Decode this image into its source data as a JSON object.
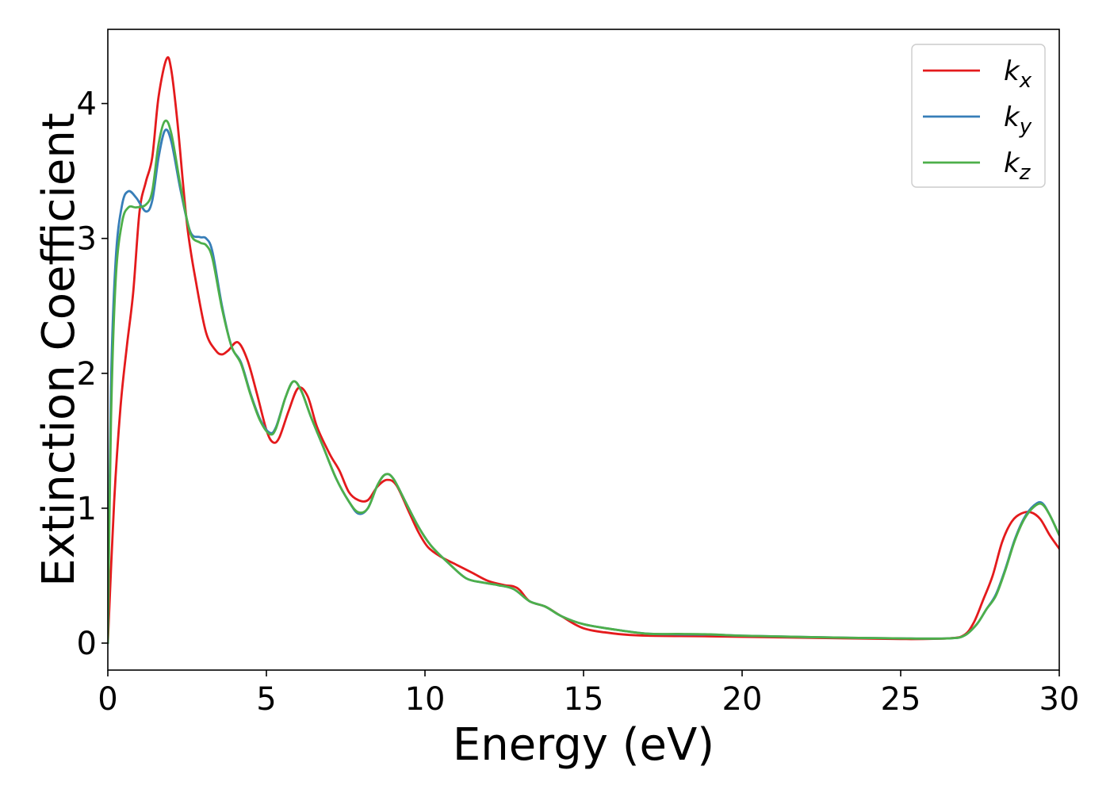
{
  "chart_data": {
    "type": "line",
    "title": "",
    "xlabel": "Energy (eV)",
    "ylabel": "Extinction Coefficient",
    "xlim": [
      0,
      30
    ],
    "ylim": [
      -0.2,
      4.55
    ],
    "xticks": [
      0,
      5,
      10,
      15,
      20,
      25,
      30
    ],
    "yticks": [
      0,
      1,
      2,
      3,
      4
    ],
    "grid": false,
    "legend_position": "top-right",
    "series": [
      {
        "name": "k",
        "subscript": "x",
        "color": "#e41a1c",
        "points": [
          [
            0,
            0
          ],
          [
            0.2,
            1.05
          ],
          [
            0.4,
            1.75
          ],
          [
            0.6,
            2.2
          ],
          [
            0.8,
            2.6
          ],
          [
            1.0,
            3.2
          ],
          [
            1.2,
            3.42
          ],
          [
            1.4,
            3.6
          ],
          [
            1.6,
            4.05
          ],
          [
            1.85,
            4.33
          ],
          [
            2.0,
            4.25
          ],
          [
            2.2,
            3.85
          ],
          [
            2.5,
            3.1
          ],
          [
            2.8,
            2.65
          ],
          [
            3.1,
            2.3
          ],
          [
            3.4,
            2.17
          ],
          [
            3.6,
            2.14
          ],
          [
            3.8,
            2.17
          ],
          [
            4.1,
            2.23
          ],
          [
            4.4,
            2.1
          ],
          [
            4.7,
            1.85
          ],
          [
            5.0,
            1.58
          ],
          [
            5.2,
            1.49
          ],
          [
            5.4,
            1.52
          ],
          [
            5.7,
            1.72
          ],
          [
            6.0,
            1.89
          ],
          [
            6.3,
            1.83
          ],
          [
            6.6,
            1.6
          ],
          [
            7.0,
            1.4
          ],
          [
            7.3,
            1.28
          ],
          [
            7.6,
            1.12
          ],
          [
            7.9,
            1.06
          ],
          [
            8.2,
            1.06
          ],
          [
            8.5,
            1.16
          ],
          [
            8.8,
            1.21
          ],
          [
            9.1,
            1.17
          ],
          [
            9.5,
            0.97
          ],
          [
            9.8,
            0.82
          ],
          [
            10.1,
            0.71
          ],
          [
            10.5,
            0.64
          ],
          [
            11.0,
            0.58
          ],
          [
            11.5,
            0.52
          ],
          [
            12.0,
            0.46
          ],
          [
            12.5,
            0.43
          ],
          [
            12.8,
            0.42
          ],
          [
            13.0,
            0.39
          ],
          [
            13.3,
            0.31
          ],
          [
            13.8,
            0.27
          ],
          [
            14.3,
            0.2
          ],
          [
            15.0,
            0.11
          ],
          [
            16.0,
            0.07
          ],
          [
            17.0,
            0.055
          ],
          [
            19.0,
            0.05
          ],
          [
            22.0,
            0.04
          ],
          [
            25.0,
            0.03
          ],
          [
            26.5,
            0.035
          ],
          [
            27.0,
            0.06
          ],
          [
            27.3,
            0.15
          ],
          [
            27.6,
            0.32
          ],
          [
            27.9,
            0.5
          ],
          [
            28.2,
            0.75
          ],
          [
            28.5,
            0.9
          ],
          [
            28.8,
            0.96
          ],
          [
            29.1,
            0.97
          ],
          [
            29.4,
            0.92
          ],
          [
            29.7,
            0.8
          ],
          [
            30.0,
            0.7
          ]
        ]
      },
      {
        "name": "k",
        "subscript": "y",
        "color": "#377eb8",
        "points": [
          [
            0,
            0
          ],
          [
            0.1,
            1.9
          ],
          [
            0.25,
            2.85
          ],
          [
            0.45,
            3.25
          ],
          [
            0.65,
            3.35
          ],
          [
            0.9,
            3.3
          ],
          [
            1.2,
            3.2
          ],
          [
            1.4,
            3.28
          ],
          [
            1.6,
            3.6
          ],
          [
            1.8,
            3.8
          ],
          [
            2.0,
            3.72
          ],
          [
            2.3,
            3.35
          ],
          [
            2.6,
            3.05
          ],
          [
            2.9,
            3.01
          ],
          [
            3.1,
            3.0
          ],
          [
            3.3,
            2.9
          ],
          [
            3.6,
            2.5
          ],
          [
            3.9,
            2.2
          ],
          [
            4.2,
            2.08
          ],
          [
            4.5,
            1.85
          ],
          [
            4.8,
            1.66
          ],
          [
            5.1,
            1.56
          ],
          [
            5.3,
            1.6
          ],
          [
            5.6,
            1.82
          ],
          [
            5.85,
            1.94
          ],
          [
            6.1,
            1.87
          ],
          [
            6.4,
            1.68
          ],
          [
            6.8,
            1.45
          ],
          [
            7.2,
            1.22
          ],
          [
            7.6,
            1.05
          ],
          [
            7.9,
            0.96
          ],
          [
            8.2,
            1.0
          ],
          [
            8.5,
            1.17
          ],
          [
            8.75,
            1.25
          ],
          [
            9.0,
            1.22
          ],
          [
            9.4,
            1.04
          ],
          [
            9.8,
            0.86
          ],
          [
            10.2,
            0.72
          ],
          [
            10.8,
            0.58
          ],
          [
            11.3,
            0.48
          ],
          [
            11.8,
            0.45
          ],
          [
            12.3,
            0.43
          ],
          [
            12.8,
            0.4
          ],
          [
            13.3,
            0.31
          ],
          [
            13.8,
            0.27
          ],
          [
            14.3,
            0.2
          ],
          [
            15.0,
            0.14
          ],
          [
            16.0,
            0.1
          ],
          [
            17.0,
            0.07
          ],
          [
            18.0,
            0.065
          ],
          [
            19.0,
            0.063
          ],
          [
            20.0,
            0.055
          ],
          [
            22.0,
            0.045
          ],
          [
            25.0,
            0.035
          ],
          [
            26.5,
            0.035
          ],
          [
            27.0,
            0.055
          ],
          [
            27.4,
            0.14
          ],
          [
            27.7,
            0.25
          ],
          [
            28.0,
            0.36
          ],
          [
            28.3,
            0.55
          ],
          [
            28.6,
            0.77
          ],
          [
            28.9,
            0.93
          ],
          [
            29.2,
            1.02
          ],
          [
            29.45,
            1.04
          ],
          [
            29.7,
            0.95
          ],
          [
            30.0,
            0.8
          ]
        ]
      },
      {
        "name": "k",
        "subscript": "z",
        "color": "#4daf4a",
        "points": [
          [
            0,
            0
          ],
          [
            0.1,
            1.65
          ],
          [
            0.25,
            2.7
          ],
          [
            0.45,
            3.12
          ],
          [
            0.65,
            3.23
          ],
          [
            0.9,
            3.23
          ],
          [
            1.2,
            3.25
          ],
          [
            1.4,
            3.35
          ],
          [
            1.6,
            3.7
          ],
          [
            1.8,
            3.87
          ],
          [
            2.0,
            3.78
          ],
          [
            2.3,
            3.38
          ],
          [
            2.6,
            3.04
          ],
          [
            2.9,
            2.97
          ],
          [
            3.1,
            2.95
          ],
          [
            3.3,
            2.85
          ],
          [
            3.6,
            2.48
          ],
          [
            3.9,
            2.2
          ],
          [
            4.2,
            2.07
          ],
          [
            4.5,
            1.84
          ],
          [
            4.8,
            1.65
          ],
          [
            5.1,
            1.55
          ],
          [
            5.3,
            1.59
          ],
          [
            5.6,
            1.82
          ],
          [
            5.85,
            1.94
          ],
          [
            6.1,
            1.87
          ],
          [
            6.4,
            1.68
          ],
          [
            6.8,
            1.45
          ],
          [
            7.2,
            1.22
          ],
          [
            7.6,
            1.05
          ],
          [
            7.9,
            0.97
          ],
          [
            8.2,
            1.0
          ],
          [
            8.5,
            1.17
          ],
          [
            8.75,
            1.25
          ],
          [
            9.0,
            1.22
          ],
          [
            9.4,
            1.04
          ],
          [
            9.8,
            0.86
          ],
          [
            10.2,
            0.72
          ],
          [
            10.8,
            0.58
          ],
          [
            11.3,
            0.48
          ],
          [
            11.8,
            0.45
          ],
          [
            12.3,
            0.43
          ],
          [
            12.8,
            0.4
          ],
          [
            13.3,
            0.31
          ],
          [
            13.8,
            0.27
          ],
          [
            14.3,
            0.2
          ],
          [
            15.0,
            0.14
          ],
          [
            16.0,
            0.1
          ],
          [
            17.0,
            0.07
          ],
          [
            18.0,
            0.068
          ],
          [
            19.0,
            0.065
          ],
          [
            20.0,
            0.055
          ],
          [
            22.0,
            0.045
          ],
          [
            25.0,
            0.035
          ],
          [
            26.5,
            0.035
          ],
          [
            27.0,
            0.055
          ],
          [
            27.4,
            0.14
          ],
          [
            27.7,
            0.25
          ],
          [
            28.0,
            0.35
          ],
          [
            28.3,
            0.54
          ],
          [
            28.6,
            0.76
          ],
          [
            28.9,
            0.92
          ],
          [
            29.2,
            1.01
          ],
          [
            29.45,
            1.03
          ],
          [
            29.7,
            0.95
          ],
          [
            30.0,
            0.8
          ]
        ]
      }
    ]
  }
}
